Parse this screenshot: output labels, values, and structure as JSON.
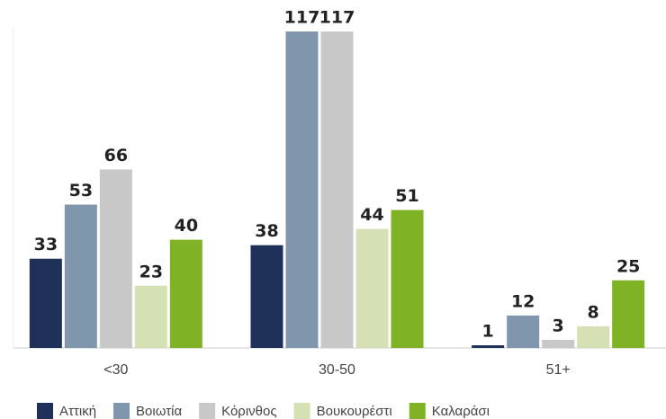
{
  "chart_data": {
    "type": "bar",
    "categories": [
      "<30",
      "30-50",
      "51+"
    ],
    "series": [
      {
        "name": "Αττική",
        "color": "#1f3059",
        "values": [
          33,
          38,
          1
        ]
      },
      {
        "name": "Βοιωτία",
        "color": "#7f96ad",
        "values": [
          53,
          117,
          12
        ]
      },
      {
        "name": "Κόρινθος",
        "color": "#c8c8c8",
        "values": [
          66,
          117,
          3
        ]
      },
      {
        "name": "Βουκουρέστι",
        "color": "#d5e0b5",
        "values": [
          23,
          44,
          8
        ]
      },
      {
        "name": "Καλαράσι",
        "color": "#7fb225",
        "values": [
          40,
          51,
          25
        ]
      }
    ]
  }
}
